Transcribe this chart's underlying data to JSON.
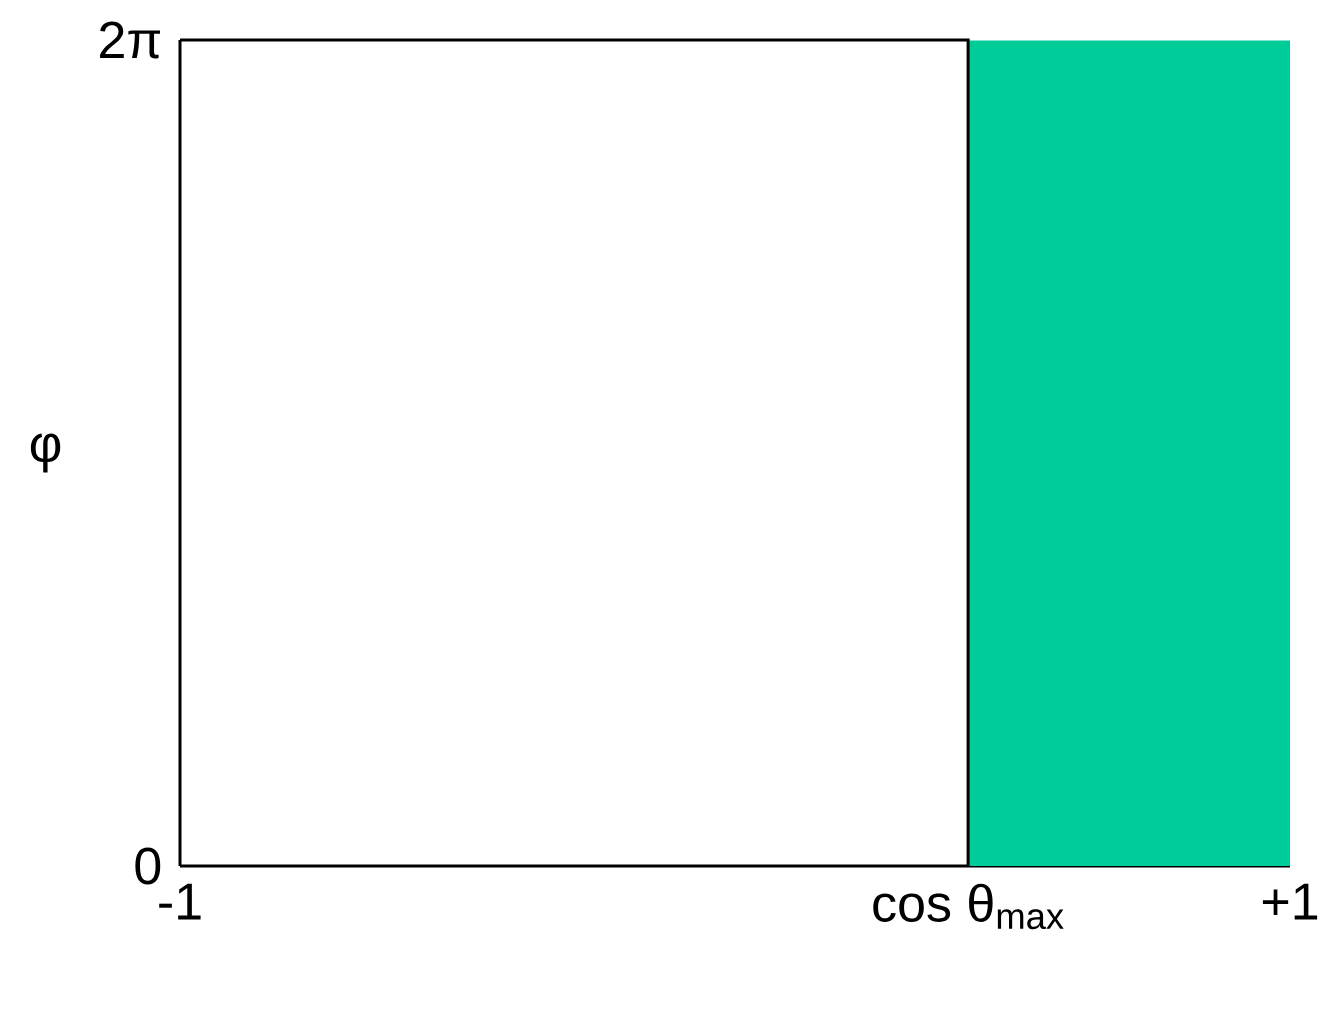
{
  "chart_data": {
    "type": "area",
    "ylabel": "φ",
    "x": [
      0.42,
      1
    ],
    "series": [
      {
        "color": "#00cc99",
        "values": [
          6.28,
          6.28
        ]
      }
    ],
    "xlim": [
      -1,
      1
    ],
    "ylim": [
      0,
      6.2832
    ],
    "xticks": [
      {
        "value": -1,
        "label": "-1"
      },
      {
        "value": 0.42,
        "label": "cos θ$_{max}$"
      },
      {
        "value": 1,
        "label": "+1"
      }
    ],
    "yticks": [
      {
        "value": 0,
        "label": "0"
      },
      {
        "value": 6.2832,
        "label": "2π"
      }
    ]
  }
}
